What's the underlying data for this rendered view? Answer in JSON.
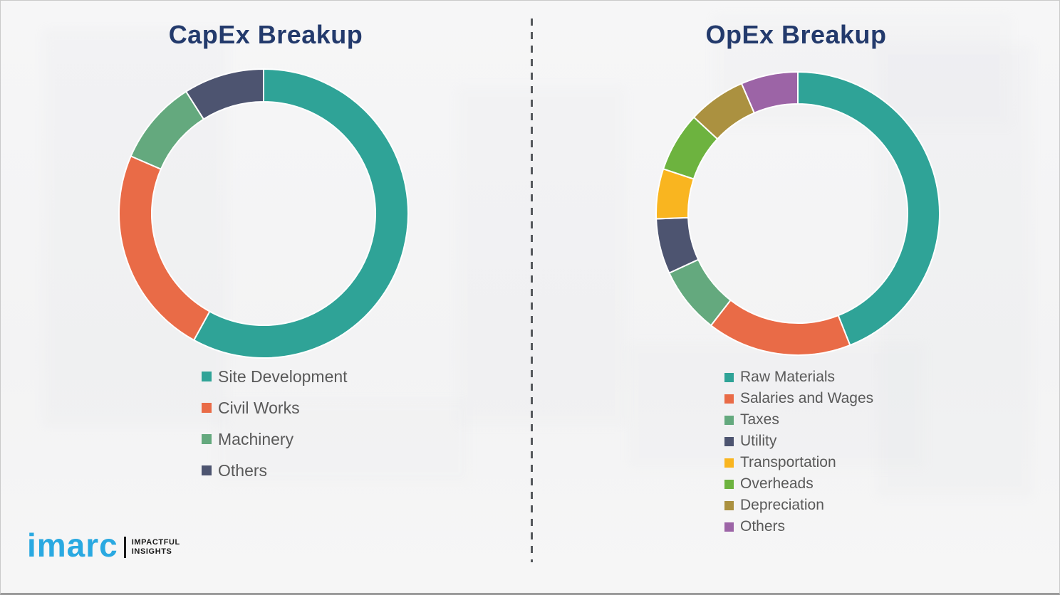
{
  "page": {
    "background_color": "#f5f5f6",
    "border_color": "#c9c9c9",
    "bottom_border_color": "#9a9a9a",
    "title_color": "#233A6C",
    "legend_text_color": "#595959"
  },
  "divider": {
    "style": "dashed-vertical",
    "color": "#55585c"
  },
  "chart_data": [
    {
      "type": "pie",
      "variant": "donut",
      "title": "CapEx Breakup",
      "categories": [
        "Site Development",
        "Civil Works",
        "Machinery",
        "Others"
      ],
      "values": [
        58,
        23.5,
        9.5,
        9
      ],
      "colors": [
        "#2FA397",
        "#E96B47",
        "#64A97E",
        "#4D5470"
      ],
      "start_angle_deg": 0,
      "direction": "clockwise",
      "legend_position": "below-left",
      "data_labels": "none",
      "units": "percent-estimated-from-arc-angles"
    },
    {
      "type": "pie",
      "variant": "donut",
      "title": "OpEx Breakup",
      "categories": [
        "Raw Materials",
        "Salaries and Wages",
        "Taxes",
        "Utility",
        "Transportation",
        "Overheads",
        "Depreciation",
        "Others"
      ],
      "values": [
        44,
        16.5,
        7.6,
        6.3,
        5.7,
        6.8,
        6.6,
        6.5
      ],
      "colors": [
        "#2FA397",
        "#E96B47",
        "#64A97E",
        "#4D5470",
        "#F9B520",
        "#6DB33F",
        "#AB9140",
        "#9C64A6"
      ],
      "start_angle_deg": 0,
      "direction": "clockwise",
      "legend_position": "below-left",
      "data_labels": "none",
      "units": "percent-estimated-from-arc-angles"
    }
  ],
  "logo": {
    "brand": "imarc",
    "brand_color": "#2AA9E1",
    "tagline_line1": "IMPACTFUL",
    "tagline_line2": "INSIGHTS",
    "tagline_color": "#1a1a1a"
  }
}
